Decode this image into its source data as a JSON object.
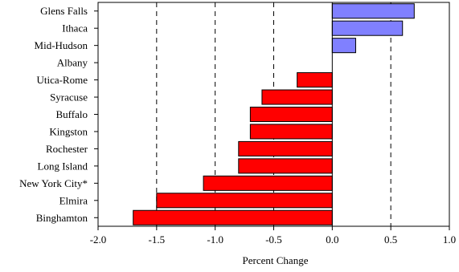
{
  "chart_data": {
    "type": "bar",
    "orientation": "horizontal",
    "title": "",
    "xlabel": "Percent Change",
    "ylabel": "",
    "xlim": [
      -2.0,
      1.0
    ],
    "x_ticks": [
      -2.0,
      -1.5,
      -1.0,
      -0.5,
      0.0,
      0.5,
      1.0
    ],
    "x_tick_labels": [
      "-2.0",
      "-1.5",
      "-1.0",
      "-0.5",
      "0.0",
      "0.5",
      "1.0"
    ],
    "reference_lines": [
      -1.5,
      -1.0,
      -0.5,
      0.5
    ],
    "reference_line_style": "dashed",
    "grid": false,
    "categories": [
      "Glens Falls",
      "Ithaca",
      "Mid-Hudson",
      "Albany",
      "Utica-Rome",
      "Syracuse",
      "Buffalo",
      "Kingston",
      "Rochester",
      "Long Island",
      "New York City*",
      "Elmira",
      "Binghamton"
    ],
    "values": [
      0.7,
      0.6,
      0.2,
      0.0,
      -0.3,
      -0.6,
      -0.7,
      -0.7,
      -0.8,
      -0.8,
      -1.1,
      -1.5,
      -1.7
    ],
    "colors": {
      "positive": "#8080ff",
      "negative": "#ff0000",
      "outline": "#000000"
    }
  }
}
